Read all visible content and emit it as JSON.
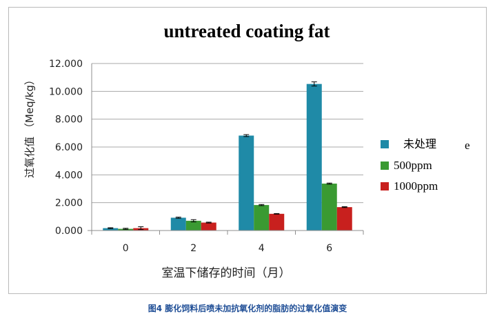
{
  "chart_data": {
    "type": "bar",
    "title": "untreated coating fat",
    "xlabel": "室温下储存的时间（月）",
    "ylabel": "过氧化值 （Meq/kg）",
    "categories": [
      "0",
      "2",
      "4",
      "6"
    ],
    "ylim": [
      0,
      12
    ],
    "yticks": [
      "0.000",
      "2.000",
      "4.000",
      "6.000",
      "8.000",
      "10.000",
      "12.000"
    ],
    "grid": true,
    "legend_position": "right",
    "legend_stray_text": "e",
    "series": [
      {
        "name": "未处理",
        "color": "#1f8aa7",
        "values": [
          0.17,
          0.92,
          6.82,
          10.53
        ],
        "errors": [
          0.03,
          0.04,
          0.07,
          0.15
        ]
      },
      {
        "name": "500ppm",
        "color": "#3a9a32",
        "values": [
          0.12,
          0.7,
          1.83,
          3.37
        ],
        "errors": [
          0.04,
          0.08,
          0.04,
          0.04
        ]
      },
      {
        "name": "1000ppm",
        "color": "#c8201e",
        "values": [
          0.17,
          0.57,
          1.2,
          1.68
        ],
        "errors": [
          0.1,
          0.03,
          0.02,
          0.03
        ]
      }
    ]
  },
  "caption": "图4 膨化饲料后喷未加抗氧化剂的脂肪的过氧化值演变"
}
